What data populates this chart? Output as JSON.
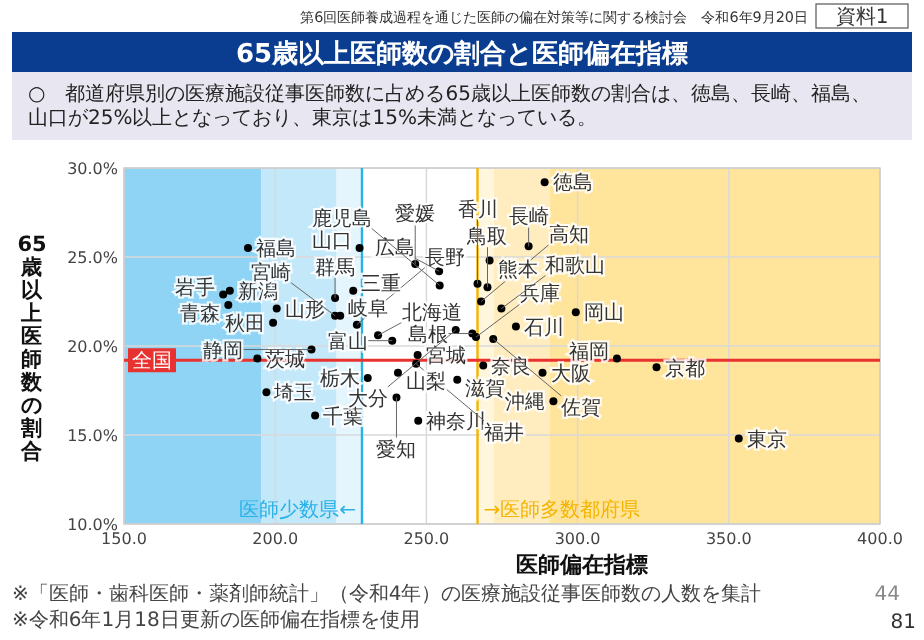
{
  "chart_data": {
    "type": "scatter",
    "title": "65歳以上医師数の割合と医師偏在指標",
    "subtitle": "○　都道府県別の医療施設従事医師数に占める65歳以上医師数の割合は、徳島、長崎、福島、山口が25%以上となっており、東京は15%未満となっている。",
    "xlabel": "医師偏在指標",
    "ylabel": "65歳以上医師数の割合",
    "xlim": [
      150,
      400
    ],
    "xticks": [
      {
        "value": 150,
        "label": "150.0"
      },
      {
        "value": 200,
        "label": "200.0"
      },
      {
        "value": 250,
        "label": "250.0"
      },
      {
        "value": 300,
        "label": "300.0"
      },
      {
        "value": 350,
        "label": "350.0"
      },
      {
        "value": 400,
        "label": "400.0"
      }
    ],
    "ylim": [
      10,
      30
    ],
    "yticks": [
      {
        "value": 10,
        "label": "10.0%"
      },
      {
        "value": 15,
        "label": "15.0%"
      },
      {
        "value": 20,
        "label": "20.0%"
      },
      {
        "value": 25,
        "label": "25.0%"
      },
      {
        "value": 30,
        "label": "30.0%"
      }
    ],
    "grid": true,
    "marker": "circle",
    "series": [
      {
        "color": "#000000",
        "x": [
          234.0,
          184.5,
          182.8,
          247.1,
          199.3,
          200.5,
          191.0,
          194.1,
          230.6,
          219.8,
          197.1,
          213.2,
          353.3,
          247.3,
          185.0,
          238.7,
          279.6,
          246.6,
          240.6,
          227.0,
          221.5,
          212.0,
          240.1,
          225.8,
          260.2,
          326.1,
          288.4,
          266.4,
          268.8,
          274.8,
          270.2,
          265.2,
          299.4,
          254.2,
          227.9,
          289.1,
          266.9,
          246.3,
          268.1,
          313.0,
          272.1,
          283.8,
          270.9,
          259.7,
          219.8,
          254.4,
          292.0
        ],
        "values": [
          20.6,
          22.3,
          22.9,
          19.5,
          21.3,
          22.1,
          25.5,
          19.3,
          18.2,
          22.7,
          17.4,
          16.1,
          14.8,
          15.8,
          23.1,
          20.3,
          21.1,
          19.0,
          18.5,
          21.2,
          21.7,
          19.8,
          17.1,
          23.1,
          18.1,
          18.8,
          18.5,
          20.5,
          18.9,
          22.1,
          23.3,
          20.7,
          21.9,
          24.2,
          25.5,
          29.2,
          23.5,
          24.6,
          22.5,
          19.3,
          20.4,
          25.6,
          24.8,
          20.9,
          21.7,
          23.4,
          16.9
        ]
      }
    ],
    "ref_lines": [
      {
        "axis": "x",
        "value": 228.7,
        "label": "医師少数県←",
        "color": "#29b2e6"
      },
      {
        "axis": "x",
        "value": 266.9,
        "label": "→医師多数都府県",
        "color": "#f5b400"
      },
      {
        "axis": "y",
        "value": 19.2,
        "label": "全国",
        "color": "#e8322f"
      }
    ],
    "bands": [
      {
        "axis": "x",
        "from": 150,
        "to": 195.3,
        "color": "#8fd4f5"
      },
      {
        "axis": "x",
        "from": 195.3,
        "to": 220.3,
        "color": "#c2e8fa"
      },
      {
        "axis": "x",
        "from": 220.3,
        "to": 228.7,
        "color": "#e4f5fd"
      },
      {
        "axis": "x",
        "from": 266.9,
        "to": 272.3,
        "color": "#fff6dc"
      },
      {
        "axis": "x",
        "from": 272.3,
        "to": 290.8,
        "color": "#ffedbf"
      },
      {
        "axis": "x",
        "from": 290.8,
        "to": 400,
        "color": "#ffe49c"
      }
    ],
    "annotations": [
      "第6回医師養成過程を通じた医師の偏在対策等に関する検討会　令和6年9月20日",
      "資料1",
      "※「医師・歯科医師・薬剤師統計」（令和4年）の医療施設従事医師数の人数を集計",
      "※令和6年1月18日更新の医師偏在指標を使用",
      "44",
      "81",
      {
        "text": "北海道",
        "x": 234.0,
        "y": 20.6
      },
      {
        "text": "青森",
        "x": 184.5,
        "y": 22.3
      },
      {
        "text": "岩手",
        "x": 182.8,
        "y": 22.9
      },
      {
        "text": "宮城",
        "x": 247.1,
        "y": 19.5
      },
      {
        "text": "秋田",
        "x": 199.3,
        "y": 21.3
      },
      {
        "text": "山形",
        "x": 200.5,
        "y": 22.1
      },
      {
        "text": "福島",
        "x": 191.0,
        "y": 25.5
      },
      {
        "text": "茨城",
        "x": 194.1,
        "y": 19.3
      },
      {
        "text": "栃木",
        "x": 230.6,
        "y": 18.2
      },
      {
        "text": "群馬",
        "x": 219.8,
        "y": 22.7
      },
      {
        "text": "埼玉",
        "x": 197.1,
        "y": 17.4
      },
      {
        "text": "千葉",
        "x": 213.2,
        "y": 16.1
      },
      {
        "text": "東京",
        "x": 353.3,
        "y": 14.8
      },
      {
        "text": "神奈川",
        "x": 247.3,
        "y": 15.8
      },
      {
        "text": "新潟",
        "x": 185.0,
        "y": 23.1
      },
      {
        "text": "富山",
        "x": 238.7,
        "y": 20.3
      },
      {
        "text": "石川",
        "x": 279.6,
        "y": 21.1
      },
      {
        "text": "福井",
        "x": 246.6,
        "y": 19.0
      },
      {
        "text": "山梨",
        "x": 240.6,
        "y": 18.5
      },
      {
        "text": "長野",
        "x": 227.0,
        "y": 21.2
      },
      {
        "text": "岐阜",
        "x": 221.5,
        "y": 21.7
      },
      {
        "text": "静岡",
        "x": 212.0,
        "y": 19.8
      },
      {
        "text": "愛知",
        "x": 240.1,
        "y": 17.1
      },
      {
        "text": "三重",
        "x": 225.8,
        "y": 23.1
      },
      {
        "text": "滋賀",
        "x": 260.2,
        "y": 18.1
      },
      {
        "text": "京都",
        "x": 326.1,
        "y": 18.8
      },
      {
        "text": "大阪",
        "x": 288.4,
        "y": 18.5
      },
      {
        "text": "兵庫",
        "x": 266.4,
        "y": 20.5
      },
      {
        "text": "奈良",
        "x": 268.8,
        "y": 18.9
      },
      {
        "text": "和歌山",
        "x": 274.8,
        "y": 22.1
      },
      {
        "text": "鳥取",
        "x": 270.2,
        "y": 23.3
      },
      {
        "text": "島根",
        "x": 265.2,
        "y": 20.7
      },
      {
        "text": "岡山",
        "x": 299.4,
        "y": 21.9
      },
      {
        "text": "広島",
        "x": 254.2,
        "y": 24.2
      },
      {
        "text": "山口",
        "x": 227.9,
        "y": 25.5
      },
      {
        "text": "徳島",
        "x": 289.1,
        "y": 29.2
      },
      {
        "text": "香川",
        "x": 266.9,
        "y": 23.5
      },
      {
        "text": "愛媛",
        "x": 246.3,
        "y": 24.6
      },
      {
        "text": "高知",
        "x": 268.1,
        "y": 22.5
      },
      {
        "text": "福岡",
        "x": 313.0,
        "y": 19.3
      },
      {
        "text": "佐賀",
        "x": 272.1,
        "y": 20.4
      },
      {
        "text": "長崎",
        "x": 283.8,
        "y": 25.6
      },
      {
        "text": "熊本",
        "x": 270.9,
        "y": 24.8
      },
      {
        "text": "大分",
        "x": 259.7,
        "y": 20.9
      },
      {
        "text": "宮崎",
        "x": 219.8,
        "y": 21.7
      },
      {
        "text": "鹿児島",
        "x": 254.4,
        "y": 23.4
      },
      {
        "text": "沖縄",
        "x": 292.0,
        "y": 16.9
      }
    ]
  }
}
